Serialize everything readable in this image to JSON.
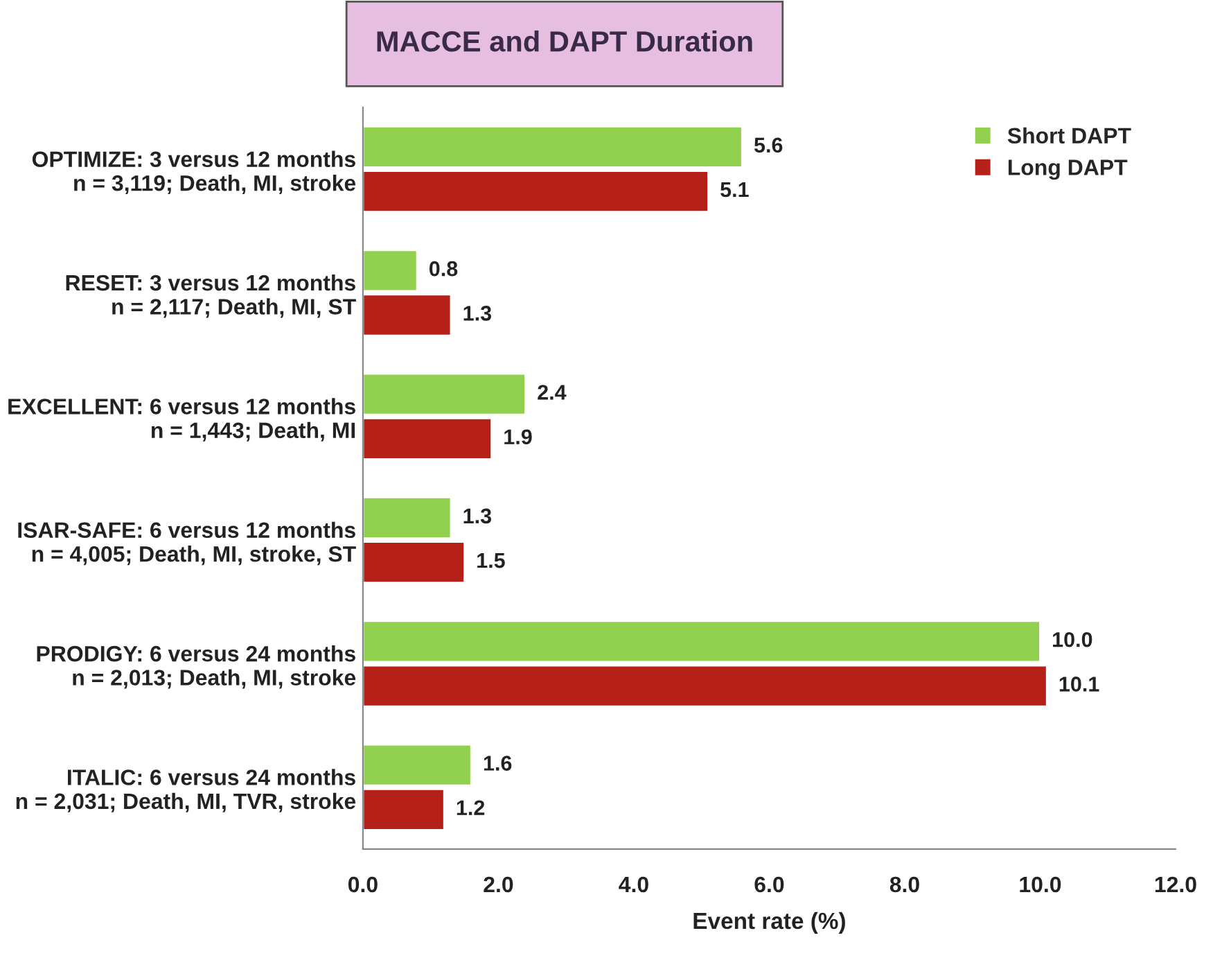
{
  "chart_data": {
    "type": "bar",
    "orientation": "horizontal",
    "title": "MACCE and DAPT Duration",
    "xlabel": "Event rate (%)",
    "categories": [
      "OPTIMIZE: 3 versus 12 months\nn = 3,119; Death, MI, stroke",
      "RESET: 3 versus 12 months\nn = 2,117; Death, MI, ST",
      "EXCELLENT: 6 versus 12 months\nn = 1,443; Death, MI",
      "ISAR-SAFE: 6 versus 12 months\nn = 4,005; Death, MI, stroke, ST",
      "PRODIGY: 6 versus 24 months\nn = 2,013; Death, MI, stroke",
      "ITALIC: 6 versus 24 months\nn = 2,031; Death, MI, TVR, stroke"
    ],
    "series": [
      {
        "name": "Short DAPT",
        "color": "#92d050",
        "values": [
          5.6,
          0.8,
          2.4,
          1.3,
          10.0,
          1.6
        ],
        "value_labels": [
          "5.6",
          "0.8",
          "2.4",
          "1.3",
          "10.0",
          "1.6"
        ]
      },
      {
        "name": "Long DAPT",
        "color": "#b52118",
        "values": [
          5.1,
          1.3,
          1.9,
          1.5,
          10.1,
          1.2
        ],
        "value_labels": [
          "5.1",
          "1.3",
          "1.9",
          "1.5",
          "10.1",
          "1.2"
        ]
      }
    ],
    "xlim": [
      0,
      12
    ],
    "xticks": [
      {
        "value": 0,
        "label": "0.0"
      },
      {
        "value": 2,
        "label": "2.0"
      },
      {
        "value": 4,
        "label": "4.0"
      },
      {
        "value": 6,
        "label": "6.0"
      },
      {
        "value": 8,
        "label": "8.0"
      },
      {
        "value": 10,
        "label": "10.0"
      },
      {
        "value": 12,
        "label": "12.0"
      }
    ],
    "grid": false,
    "legend": "top right"
  }
}
